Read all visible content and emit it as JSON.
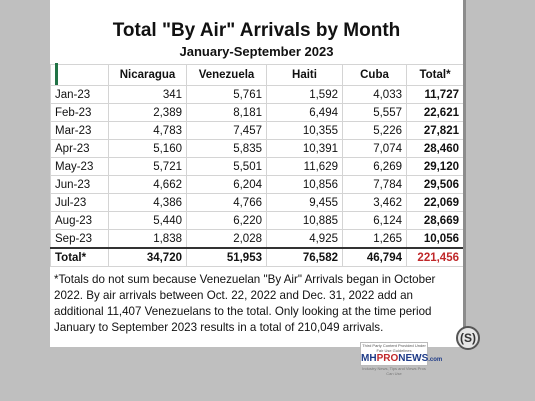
{
  "chart_data": {
    "type": "table",
    "title": "Total \"By Air\" Arrivals by Month",
    "subtitle": "January-September 2023",
    "columns": [
      "",
      "Nicaragua",
      "Venezuela",
      "Haiti",
      "Cuba",
      "Total*"
    ],
    "rows": [
      {
        "month": "Jan-23",
        "values": [
          "341",
          "5,761",
          "1,592",
          "4,033",
          "11,727"
        ]
      },
      {
        "month": "Feb-23",
        "values": [
          "2,389",
          "8,181",
          "6,494",
          "5,557",
          "22,621"
        ]
      },
      {
        "month": "Mar-23",
        "values": [
          "4,783",
          "7,457",
          "10,355",
          "5,226",
          "27,821"
        ]
      },
      {
        "month": "Apr-23",
        "values": [
          "5,160",
          "5,835",
          "10,391",
          "7,074",
          "28,460"
        ]
      },
      {
        "month": "May-23",
        "values": [
          "5,721",
          "5,501",
          "11,629",
          "6,269",
          "29,120"
        ]
      },
      {
        "month": "Jun-23",
        "values": [
          "4,662",
          "6,204",
          "10,856",
          "7,784",
          "29,506"
        ]
      },
      {
        "month": "Jul-23",
        "values": [
          "4,386",
          "4,766",
          "9,455",
          "3,462",
          "22,069"
        ]
      },
      {
        "month": "Aug-23",
        "values": [
          "5,440",
          "6,220",
          "10,885",
          "6,124",
          "28,669"
        ]
      },
      {
        "month": "Sep-23",
        "values": [
          "1,838",
          "2,028",
          "4,925",
          "1,265",
          "10,056"
        ]
      }
    ],
    "total_row": {
      "label": "Total*",
      "values": [
        "34,720",
        "51,953",
        "76,582",
        "46,794",
        "221,456"
      ]
    }
  },
  "footnote": "*Totals do not sum because Venezuelan \"By Air\" Arrivals began in October 2022. By air arrivals between Oct. 22, 2022 and Dec. 31, 2022  add an additional 11,407 Venezuelans to the total.  Only looking at the time period January to September 2023 results in a total of 210,049 arrivals.",
  "logo": {
    "top_text": "Third Party Content Provided Under Fair Use Guidelines",
    "brand_a": "MH",
    "brand_b": "PRO",
    "brand_c": "NEWS",
    "brand_d": ".com",
    "tagline": "Industry News, Tips and Views Pros Can Use"
  },
  "copyright_symbol": "(S)",
  "colors": {
    "grand_total": "#c0282a",
    "selection": "#217346"
  }
}
